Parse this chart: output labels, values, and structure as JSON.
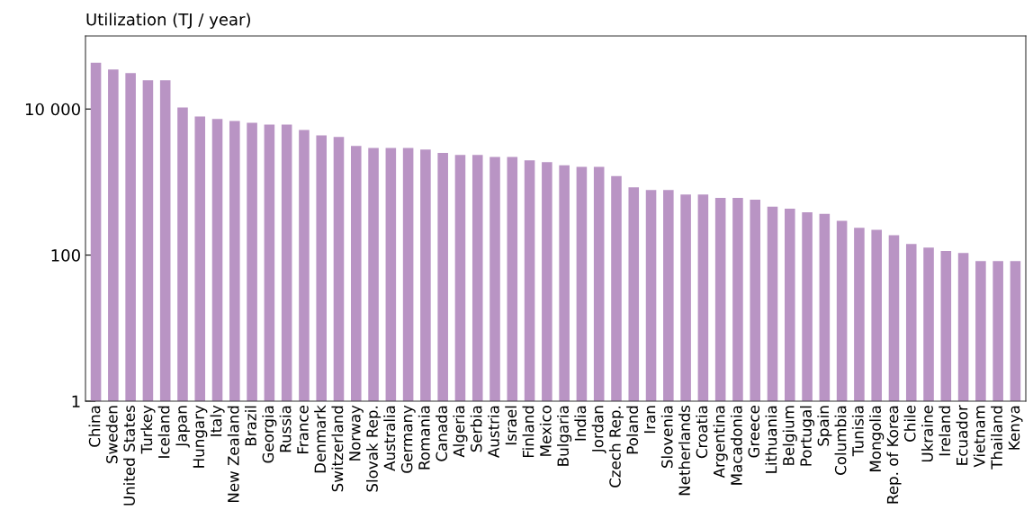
{
  "chart_data": {
    "type": "bar",
    "ylabel": "Utilization (TJ / year)",
    "categories": [
      "China",
      "Sweden",
      "United States",
      "Turkey",
      "Iceland",
      "Japan",
      "Hungary",
      "Italy",
      "New Zealand",
      "Brazil",
      "Georgia",
      "Russia",
      "France",
      "Denmark",
      "Switzerland",
      "Norway",
      "Slovak Rep.",
      "Australia",
      "Germany",
      "Romania",
      "Canada",
      "Algeria",
      "Serbia",
      "Austria",
      "Israel",
      "Finland",
      "Mexico",
      "Bulgaria",
      "India",
      "Jordan",
      "Czech Rep.",
      "Poland",
      "Iran",
      "Slovenia",
      "Netherlands",
      "Croatia",
      "Argentina",
      "Macadonia",
      "Greece",
      "Lithuania",
      "Belgium",
      "Portugal",
      "Spain",
      "Columbia",
      "Tunisia",
      "Mongolia",
      "Rep. of Korea",
      "Chile",
      "Ukraine",
      "Ireland",
      "Ecuador",
      "Vietnam",
      "Thailand",
      "Kenya"
    ],
    "values": [
      43000,
      34800,
      31000,
      24800,
      24800,
      10500,
      7900,
      7300,
      6850,
      6500,
      6140,
      6140,
      5160,
      4350,
      4140,
      3120,
      2930,
      2930,
      2930,
      2790,
      2500,
      2350,
      2350,
      2210,
      2210,
      1980,
      1880,
      1700,
      1610,
      1610,
      1210,
      845,
      778,
      778,
      676,
      676,
      605,
      605,
      575,
      461,
      433,
      387,
      368,
      294,
      236,
      222,
      187,
      142,
      127,
      114,
      107,
      83,
      83,
      83
    ],
    "color": "#b994c4",
    "log": "y",
    "ylim": [
      1,
      100000
    ],
    "yticks": [
      1,
      100,
      {
        "value": 10000,
        "label": "10 000"
      }
    ],
    "grid": false,
    "legend": false
  }
}
